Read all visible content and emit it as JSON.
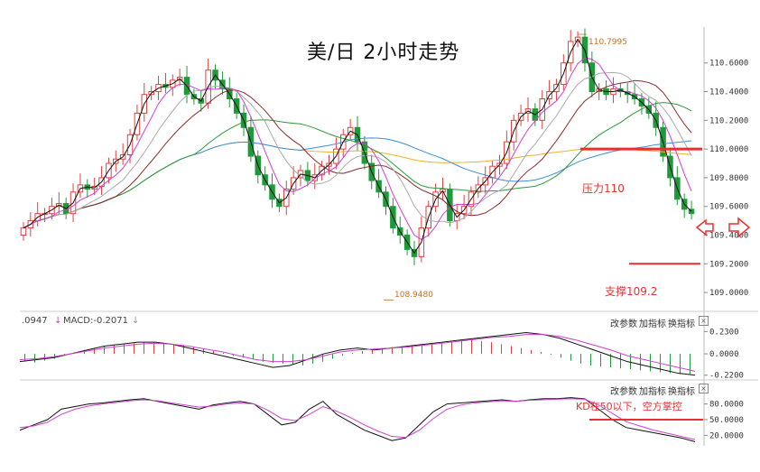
{
  "title": "美/日 2小时走势",
  "colors": {
    "up": "#e04040",
    "down": "#1f9a3a",
    "ma_yellow": "#f0b030",
    "ma_blue": "#3a8fd8",
    "ma_green": "#2a9a3a",
    "ma_darkred": "#8b2a2a",
    "ma_gray": "#aaaaaa",
    "ma_magenta": "#d040d0",
    "ma_black": "#111111",
    "annot_red": "#e83030"
  },
  "annotations": {
    "high_label": "110.7995",
    "low_label": "108.9480",
    "resistance_label": "压力110",
    "support_label": "支撑109.2",
    "kd_label": "KD在50以下，空方掌控"
  },
  "macd_panel": {
    "header_left": ".0947",
    "header_macd": "MACD:-0.2071",
    "btn_params": "改参数",
    "btn_add": "加指标",
    "btn_swap": "换指标",
    "btn_close": "×"
  },
  "kd_panel": {
    "btn_params": "改参数",
    "btn_add": "加指标",
    "btn_swap": "换指标",
    "btn_close": "×"
  },
  "chart_data": [
    {
      "type": "candlestick",
      "title": "美/日 2小时走势",
      "ylim": [
        108.9,
        110.85
      ],
      "y_ticks": [
        "110.6000",
        "110.4000",
        "110.2000",
        "110.0000",
        "109.8000",
        "109.6000",
        "109.4000",
        "109.2000",
        "109.0000"
      ],
      "close": [
        109.45,
        109.5,
        109.55,
        109.55,
        109.6,
        109.62,
        109.55,
        109.7,
        109.75,
        109.72,
        109.74,
        109.8,
        109.9,
        109.93,
        109.96,
        110.1,
        110.25,
        110.38,
        110.4,
        110.45,
        110.43,
        110.48,
        110.5,
        110.38,
        110.35,
        110.32,
        110.55,
        110.48,
        110.42,
        110.35,
        110.25,
        110.15,
        109.95,
        109.82,
        109.75,
        109.65,
        109.6,
        109.72,
        109.8,
        109.85,
        109.78,
        109.82,
        109.88,
        109.9,
        110.0,
        110.1,
        110.15,
        110.05,
        109.9,
        109.78,
        109.7,
        109.6,
        109.45,
        109.4,
        109.3,
        109.25,
        109.45,
        109.6,
        109.7,
        109.72,
        109.5,
        109.55,
        109.6,
        109.7,
        109.75,
        109.8,
        109.88,
        109.9,
        110.05,
        110.2,
        110.25,
        110.28,
        110.2,
        110.35,
        110.4,
        110.45,
        110.6,
        110.75,
        110.78,
        110.6,
        110.4,
        110.42,
        110.38,
        110.42,
        110.4,
        110.38,
        110.35,
        110.3,
        110.25,
        110.15,
        109.95,
        109.8,
        109.65,
        109.58,
        109.55
      ],
      "resistance": 110.0,
      "support": 109.2,
      "high_point": 110.7995,
      "low_point": 108.948
    },
    {
      "type": "bar",
      "name": "MACD",
      "y_ticks": [
        "0.2300",
        "0.0000",
        "-0.2200"
      ],
      "ylim": [
        -0.26,
        0.28
      ],
      "values": [
        -0.08,
        -0.09,
        -0.07,
        -0.05,
        -0.02,
        0.01,
        0.04,
        0.06,
        0.08,
        0.09,
        0.1,
        0.11,
        0.12,
        0.12,
        0.11,
        0.1,
        0.09,
        0.07,
        0.05,
        0.03,
        0.01,
        -0.02,
        -0.04,
        -0.06,
        -0.08,
        -0.09,
        -0.1,
        -0.11,
        -0.12,
        -0.1,
        -0.08,
        -0.05,
        -0.02,
        0.01,
        0.03,
        0.05,
        0.06,
        0.07,
        0.08,
        0.09,
        0.1,
        0.11,
        0.12,
        0.13,
        0.14,
        0.14,
        0.13,
        0.12,
        0.1,
        0.08,
        0.06,
        0.04,
        0.02,
        -0.01,
        -0.04,
        -0.07,
        -0.1,
        -0.12,
        -0.13,
        -0.14,
        -0.15,
        -0.16,
        -0.17,
        -0.18,
        -0.19,
        -0.2,
        -0.21,
        -0.2071
      ],
      "macd_line": [
        -0.08,
        -0.06,
        -0.04,
        0.0,
        0.04,
        0.08,
        0.1,
        0.12,
        0.12,
        0.1,
        0.06,
        0.02,
        -0.02,
        -0.06,
        -0.1,
        -0.14,
        -0.12,
        -0.06,
        0.0,
        0.04,
        0.06,
        0.04,
        0.06,
        0.08,
        0.1,
        0.12,
        0.14,
        0.16,
        0.18,
        0.2,
        0.22,
        0.2,
        0.16,
        0.1,
        0.04,
        -0.02,
        -0.08,
        -0.12,
        -0.16,
        -0.2,
        -0.22
      ],
      "signal_line": [
        -0.06,
        -0.05,
        -0.03,
        0.0,
        0.03,
        0.06,
        0.08,
        0.1,
        0.11,
        0.1,
        0.08,
        0.05,
        0.02,
        -0.02,
        -0.06,
        -0.08,
        -0.08,
        -0.06,
        -0.02,
        0.02,
        0.04,
        0.05,
        0.06,
        0.07,
        0.09,
        0.11,
        0.13,
        0.15,
        0.17,
        0.18,
        0.2,
        0.2,
        0.18,
        0.14,
        0.09,
        0.04,
        -0.02,
        -0.06,
        -0.1,
        -0.14,
        -0.18
      ]
    },
    {
      "type": "line",
      "name": "KD",
      "y_ticks": [
        "80.0000",
        "50.0000",
        "20.0000"
      ],
      "ylim": [
        0,
        100
      ],
      "k": [
        30,
        40,
        50,
        70,
        75,
        80,
        82,
        85,
        88,
        90,
        85,
        80,
        75,
        70,
        78,
        82,
        85,
        80,
        60,
        40,
        45,
        70,
        85,
        60,
        45,
        30,
        20,
        10,
        15,
        40,
        65,
        80,
        82,
        84,
        86,
        88,
        85,
        88,
        90,
        90,
        92,
        90,
        70,
        50,
        35,
        30,
        25,
        20,
        15,
        8
      ],
      "d": [
        35,
        38,
        45,
        60,
        70,
        76,
        80,
        83,
        86,
        88,
        86,
        82,
        78,
        74,
        76,
        80,
        82,
        80,
        68,
        52,
        48,
        60,
        75,
        66,
        54,
        40,
        28,
        18,
        16,
        30,
        52,
        70,
        78,
        82,
        84,
        86,
        85,
        87,
        88,
        89,
        90,
        89,
        78,
        62,
        46,
        38,
        30,
        24,
        18,
        12
      ],
      "threshold": 50
    }
  ]
}
